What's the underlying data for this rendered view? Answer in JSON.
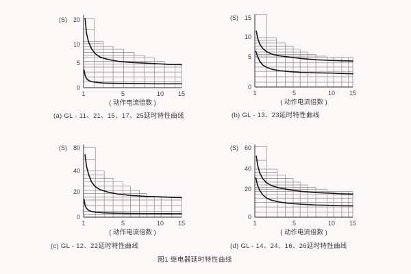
{
  "figure_caption": "图1 继电器延时特性曲线",
  "colors": {
    "background": "#fcf8f7",
    "grid": "#8c8c8c",
    "axis": "#4f4f4f",
    "curve": "#1d1d1d",
    "text": "#3d3d3d"
  },
  "chart_data": [
    {
      "type": "line",
      "panel": "a",
      "caption": "(a) GL - 11、21、15、17、25延时特性曲线",
      "y_unit_label": "(S)",
      "xlabel": "( 动作电流倍数 )",
      "xlim": [
        1,
        15
      ],
      "ylim": [
        0,
        20
      ],
      "grid": true,
      "x_ticks": [
        {
          "label": "1",
          "v": 1,
          "f": 0
        },
        {
          "label": "5",
          "v": 5,
          "f": 0.402
        },
        {
          "label": "10",
          "v": 10,
          "f": 0.783
        },
        {
          "label": "15",
          "v": 15,
          "f": 1
        }
      ],
      "y_ticks": [
        {
          "label": "0",
          "v": 0,
          "f": 0
        },
        {
          "label": "5",
          "v": 5,
          "f": 0.344
        },
        {
          "label": "10",
          "v": 10,
          "f": 0.606
        },
        {
          "label": "20",
          "v": 20,
          "f": 0.954
        }
      ],
      "tolerance_steps": {
        "hlines": [
          [
            20.5,
            2.1
          ],
          [
            16,
            2.1
          ],
          [
            11.3,
            3
          ],
          [
            10.3,
            3
          ],
          [
            9.5,
            4
          ],
          [
            8.7,
            5.1
          ],
          [
            7.9,
            6.5
          ],
          [
            7.1,
            7.9
          ],
          [
            6.4,
            9.2
          ],
          [
            5.5,
            11
          ],
          [
            4.8,
            15
          ],
          [
            4.2,
            15
          ],
          [
            3.2,
            15
          ],
          [
            2.2,
            15
          ],
          [
            1.25,
            15
          ]
        ],
        "vlines": [
          [
            2.1,
            20.5
          ],
          [
            3,
            11.3
          ],
          [
            4,
            9.5
          ],
          [
            5.1,
            8.7
          ],
          [
            6.5,
            7.9
          ],
          [
            7.9,
            7.1
          ],
          [
            9.2,
            6.4
          ],
          [
            11,
            5.5
          ],
          [
            13.5,
            4.8
          ],
          [
            15,
            4.8
          ]
        ]
      },
      "series": [
        {
          "name": "upper-limit-curve",
          "points": [
            [
              1.15,
              20.5
            ],
            [
              1.3,
              14.5
            ],
            [
              1.5,
              11.1
            ],
            [
              1.8,
              8.9
            ],
            [
              2.2,
              7.5
            ],
            [
              2.7,
              6.6
            ],
            [
              3.5,
              6.0
            ],
            [
              4.5,
              5.5
            ],
            [
              6,
              5.2
            ],
            [
              8,
              5.0
            ],
            [
              10,
              4.85
            ],
            [
              12,
              4.75
            ],
            [
              15,
              4.7
            ]
          ]
        },
        {
          "name": "lower-limit-curve",
          "points": [
            [
              1.05,
              3.6
            ],
            [
              1.15,
              2.5
            ],
            [
              1.3,
              1.85
            ],
            [
              1.5,
              1.5
            ],
            [
              1.8,
              1.25
            ],
            [
              2.2,
              1.1
            ],
            [
              3,
              0.95
            ],
            [
              4,
              0.9
            ],
            [
              6,
              0.85
            ],
            [
              9,
              0.8
            ],
            [
              12,
              0.8
            ],
            [
              15,
              0.8
            ]
          ]
        }
      ]
    },
    {
      "type": "line",
      "panel": "b",
      "caption": "(b) GL - 13、23延时特性曲线",
      "y_unit_label": "(S)",
      "xlabel": "( 动作电流倍数 )",
      "xlim": [
        1,
        15
      ],
      "ylim": [
        0,
        15
      ],
      "grid": true,
      "x_ticks": [
        {
          "label": "1",
          "v": 1,
          "f": 0
        },
        {
          "label": "5",
          "v": 5,
          "f": 0.402
        },
        {
          "label": "10",
          "v": 10,
          "f": 0.783
        },
        {
          "label": "15",
          "v": 15,
          "f": 1
        }
      ],
      "y_ticks": [
        {
          "label": "0",
          "v": 0,
          "f": 0
        },
        {
          "label": "5",
          "v": 5,
          "f": 0.424
        },
        {
          "label": "10",
          "v": 10,
          "f": 0.703
        },
        {
          "label": "15",
          "v": 15,
          "f": 0.971
        }
      ],
      "tolerance_steps": {
        "hlines": [
          [
            15.8,
            2.2
          ],
          [
            9.8,
            3.2
          ],
          [
            9.15,
            3.2
          ],
          [
            8.45,
            4.1
          ],
          [
            7.7,
            4.9
          ],
          [
            6.9,
            5.8
          ],
          [
            6.2,
            6.8
          ],
          [
            5.6,
            7.9
          ],
          [
            5.15,
            9.4
          ],
          [
            4.9,
            15
          ],
          [
            4.0,
            15
          ],
          [
            3.3,
            15
          ],
          [
            2.6,
            15
          ],
          [
            1.7,
            15
          ],
          [
            0.8,
            15
          ]
        ],
        "vlines": [
          [
            2.2,
            15.8
          ],
          [
            3.2,
            9.8
          ],
          [
            4.1,
            8.45
          ],
          [
            4.9,
            7.7
          ],
          [
            5.8,
            6.9
          ],
          [
            6.8,
            6.2
          ],
          [
            7.9,
            5.6
          ],
          [
            9.4,
            5.15
          ],
          [
            10.5,
            4.9
          ],
          [
            12.4,
            4.9
          ],
          [
            14,
            4.9
          ],
          [
            15,
            4.9
          ]
        ]
      },
      "series": [
        {
          "name": "upper-limit-curve",
          "points": [
            [
              1.15,
              11.5
            ],
            [
              1.3,
              9.6
            ],
            [
              1.5,
              8.2
            ],
            [
              1.8,
              7.1
            ],
            [
              2.2,
              6.3
            ],
            [
              2.7,
              5.7
            ],
            [
              3.5,
              5.25
            ],
            [
              4.5,
              4.95
            ],
            [
              6,
              4.7
            ],
            [
              8,
              4.5
            ],
            [
              10,
              4.4
            ],
            [
              12,
              4.35
            ],
            [
              15,
              4.3
            ]
          ]
        },
        {
          "name": "lower-limit-curve",
          "points": [
            [
              1.1,
              6.4
            ],
            [
              1.3,
              5.0
            ],
            [
              1.5,
              4.25
            ],
            [
              1.8,
              3.65
            ],
            [
              2.2,
              3.25
            ],
            [
              2.7,
              2.95
            ],
            [
              3.5,
              2.7
            ],
            [
              4.5,
              2.55
            ],
            [
              6,
              2.4
            ],
            [
              8,
              2.35
            ],
            [
              10,
              2.3
            ],
            [
              12,
              2.25
            ],
            [
              15,
              2.2
            ]
          ]
        }
      ]
    },
    {
      "type": "line",
      "panel": "c",
      "caption": "(c) GL - 12、22延时特性曲线",
      "y_unit_label": "(S)",
      "xlabel": "( 动作电流倍数 )",
      "xlim": [
        1,
        15
      ],
      "ylim": [
        0,
        80
      ],
      "grid": true,
      "x_ticks": [
        {
          "label": "1",
          "v": 1,
          "f": 0
        },
        {
          "label": "5",
          "v": 5,
          "f": 0.402
        },
        {
          "label": "10",
          "v": 10,
          "f": 0.783
        },
        {
          "label": "15",
          "v": 15,
          "f": 1
        }
      ],
      "y_ticks": [
        {
          "label": "0",
          "v": 0,
          "f": 0
        },
        {
          "label": "20",
          "v": 20,
          "f": 0.354
        },
        {
          "label": "40",
          "v": 40,
          "f": 0.649
        },
        {
          "label": "80",
          "v": 80,
          "f": 0.972
        }
      ],
      "tolerance_steps": {
        "hlines": [
          [
            81,
            2.2
          ],
          [
            60,
            2.2
          ],
          [
            40,
            3.1
          ],
          [
            36.3,
            3.1
          ],
          [
            33,
            4
          ],
          [
            29.7,
            5
          ],
          [
            25.5,
            6
          ],
          [
            21.5,
            7.2
          ],
          [
            18.7,
            8.2
          ],
          [
            15.8,
            15
          ],
          [
            13.6,
            15
          ],
          [
            9.6,
            15
          ],
          [
            4.6,
            15
          ],
          [
            1.85,
            15
          ]
        ],
        "vlines": [
          [
            2.2,
            81
          ],
          [
            3.1,
            40
          ],
          [
            4,
            33
          ],
          [
            5,
            29.7
          ],
          [
            6,
            25.5
          ],
          [
            7.2,
            21.5
          ],
          [
            8.2,
            18.7
          ],
          [
            9.2,
            15.8
          ],
          [
            10.2,
            15.8
          ],
          [
            12.7,
            15.8
          ],
          [
            15,
            15.8
          ]
        ]
      },
      "series": [
        {
          "name": "upper-limit-curve",
          "points": [
            [
              1.15,
              68
            ],
            [
              1.3,
              48
            ],
            [
              1.5,
              37
            ],
            [
              1.8,
              29.5
            ],
            [
              2.2,
              24.9
            ],
            [
              2.7,
              22.0
            ],
            [
              3.5,
              19.75
            ],
            [
              4.5,
              18.3
            ],
            [
              6,
              17.2
            ],
            [
              8,
              16.5
            ],
            [
              10,
              16.1
            ],
            [
              12,
              15.8
            ],
            [
              15,
              15.55
            ]
          ]
        },
        {
          "name": "lower-limit-curve",
          "points": [
            [
              1.05,
              14
            ],
            [
              1.15,
              9.4
            ],
            [
              1.3,
              6.9
            ],
            [
              1.5,
              5.45
            ],
            [
              1.8,
              4.5
            ],
            [
              2.2,
              3.9
            ],
            [
              3,
              3.4
            ],
            [
              4,
              3.15
            ],
            [
              6,
              2.95
            ],
            [
              9,
              2.8
            ],
            [
              12,
              2.75
            ],
            [
              15,
              2.7
            ]
          ]
        }
      ]
    },
    {
      "type": "line",
      "panel": "d",
      "caption": "(d) GL - 14、24、16、26延时特性曲线",
      "y_unit_label": "(S)",
      "xlabel": "( 动作电流倍数 )",
      "xlim": [
        1,
        15
      ],
      "ylim": [
        0,
        60
      ],
      "grid": true,
      "x_ticks": [
        {
          "label": "1",
          "v": 1,
          "f": 0
        },
        {
          "label": "5",
          "v": 5,
          "f": 0.402
        },
        {
          "label": "10",
          "v": 10,
          "f": 0.783
        },
        {
          "label": "15",
          "v": 15,
          "f": 1
        }
      ],
      "y_ticks": [
        {
          "label": "0",
          "v": 0,
          "f": 0
        },
        {
          "label": "20",
          "v": 20,
          "f": 0.392
        },
        {
          "label": "40",
          "v": 40,
          "f": 0.68
        },
        {
          "label": "60",
          "v": 60,
          "f": 0.972
        }
      ],
      "tolerance_steps": {
        "hlines": [
          [
            61.5,
            2.2
          ],
          [
            48,
            2.2
          ],
          [
            39.5,
            3.3
          ],
          [
            36.6,
            3.3
          ],
          [
            33.7,
            4.1
          ],
          [
            30.5,
            4.9
          ],
          [
            26.9,
            5.8
          ],
          [
            24.2,
            6.8
          ],
          [
            21.8,
            7.9
          ],
          [
            20,
            9.4
          ],
          [
            18.4,
            15
          ],
          [
            16,
            15
          ],
          [
            13.6,
            15
          ],
          [
            10.5,
            15
          ],
          [
            7.3,
            15
          ],
          [
            3.5,
            15
          ]
        ],
        "vlines": [
          [
            2.2,
            61.5
          ],
          [
            3.3,
            39.5
          ],
          [
            4.1,
            33.7
          ],
          [
            4.9,
            30.5
          ],
          [
            5.8,
            26.9
          ],
          [
            6.8,
            24.2
          ],
          [
            7.9,
            21.8
          ],
          [
            9.4,
            20
          ],
          [
            10.5,
            18.4
          ],
          [
            12.4,
            18.4
          ],
          [
            14,
            18.4
          ],
          [
            15,
            18.4
          ]
        ]
      },
      "series": [
        {
          "name": "upper-limit-curve",
          "points": [
            [
              1.15,
              52
            ],
            [
              1.3,
              42.8
            ],
            [
              1.5,
              35.9
            ],
            [
              1.8,
              30.3
            ],
            [
              2.2,
              26.3
            ],
            [
              2.7,
              23.5
            ],
            [
              3.5,
              21.2
            ],
            [
              4.5,
              19.6
            ],
            [
              6,
              18.4
            ],
            [
              8,
              17.6
            ],
            [
              10,
              17.1
            ],
            [
              12,
              16.8
            ],
            [
              15,
              16.5
            ]
          ]
        },
        {
          "name": "lower-limit-curve",
          "points": [
            [
              1.1,
              31
            ],
            [
              1.3,
              23.1
            ],
            [
              1.5,
              19.2
            ],
            [
              1.8,
              16.0
            ],
            [
              2.2,
              13.7
            ],
            [
              2.7,
              12.1
            ],
            [
              3.5,
              10.8
            ],
            [
              4.5,
              9.9
            ],
            [
              6,
              9.2
            ],
            [
              8,
              8.7
            ],
            [
              10,
              8.4
            ],
            [
              12,
              8.2
            ],
            [
              15,
              8.1
            ]
          ]
        }
      ]
    }
  ]
}
